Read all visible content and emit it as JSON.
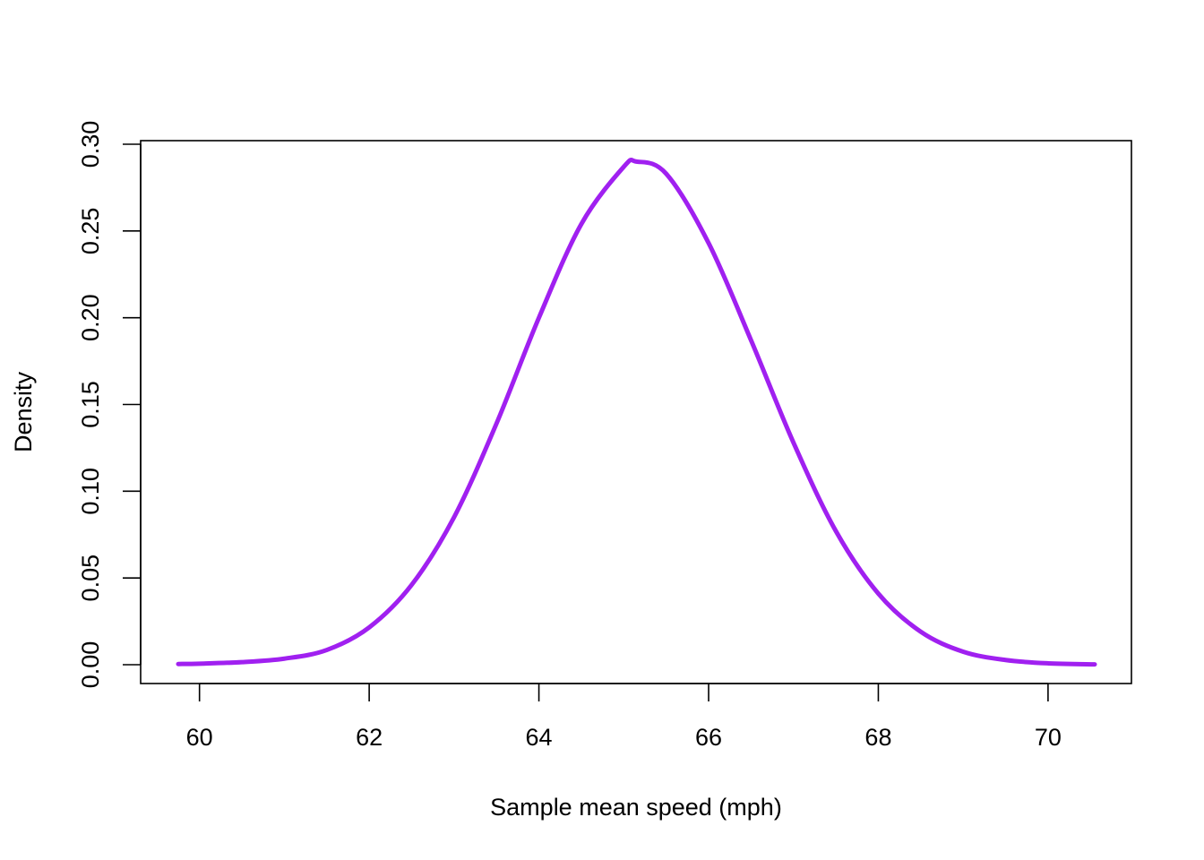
{
  "chart_data": {
    "type": "line",
    "title": "",
    "xlabel": "Sample mean speed (mph)",
    "ylabel": "Density",
    "xlim": [
      59.75,
      70.55
    ],
    "ylim": [
      0,
      0.3
    ],
    "x_ticks": [
      60,
      62,
      64,
      66,
      68,
      70
    ],
    "x_tick_labels": [
      "60",
      "62",
      "64",
      "66",
      "68",
      "70"
    ],
    "y_ticks": [
      0,
      0.05,
      0.1,
      0.15,
      0.2,
      0.25,
      0.3
    ],
    "y_tick_labels": [
      "0.00",
      "0.05",
      "0.10",
      "0.15",
      "0.20",
      "0.25",
      "0.30"
    ],
    "grid": false,
    "legend": "none",
    "line_color": "#A020F0",
    "series": [
      {
        "x": [
          59.75,
          60.0,
          60.5,
          61.0,
          61.5,
          62.0,
          62.5,
          63.0,
          63.5,
          64.0,
          64.5,
          65.0,
          65.15,
          65.5,
          66.0,
          66.5,
          67.0,
          67.5,
          68.0,
          68.5,
          69.0,
          69.5,
          70.0,
          70.55
        ],
        "values": [
          0.0004,
          0.0006,
          0.0015,
          0.0035,
          0.0085,
          0.0215,
          0.046,
          0.085,
          0.139,
          0.2,
          0.254,
          0.287,
          0.29,
          0.283,
          0.243,
          0.187,
          0.128,
          0.077,
          0.041,
          0.019,
          0.0075,
          0.0027,
          0.0008,
          0.0002
        ]
      }
    ]
  }
}
